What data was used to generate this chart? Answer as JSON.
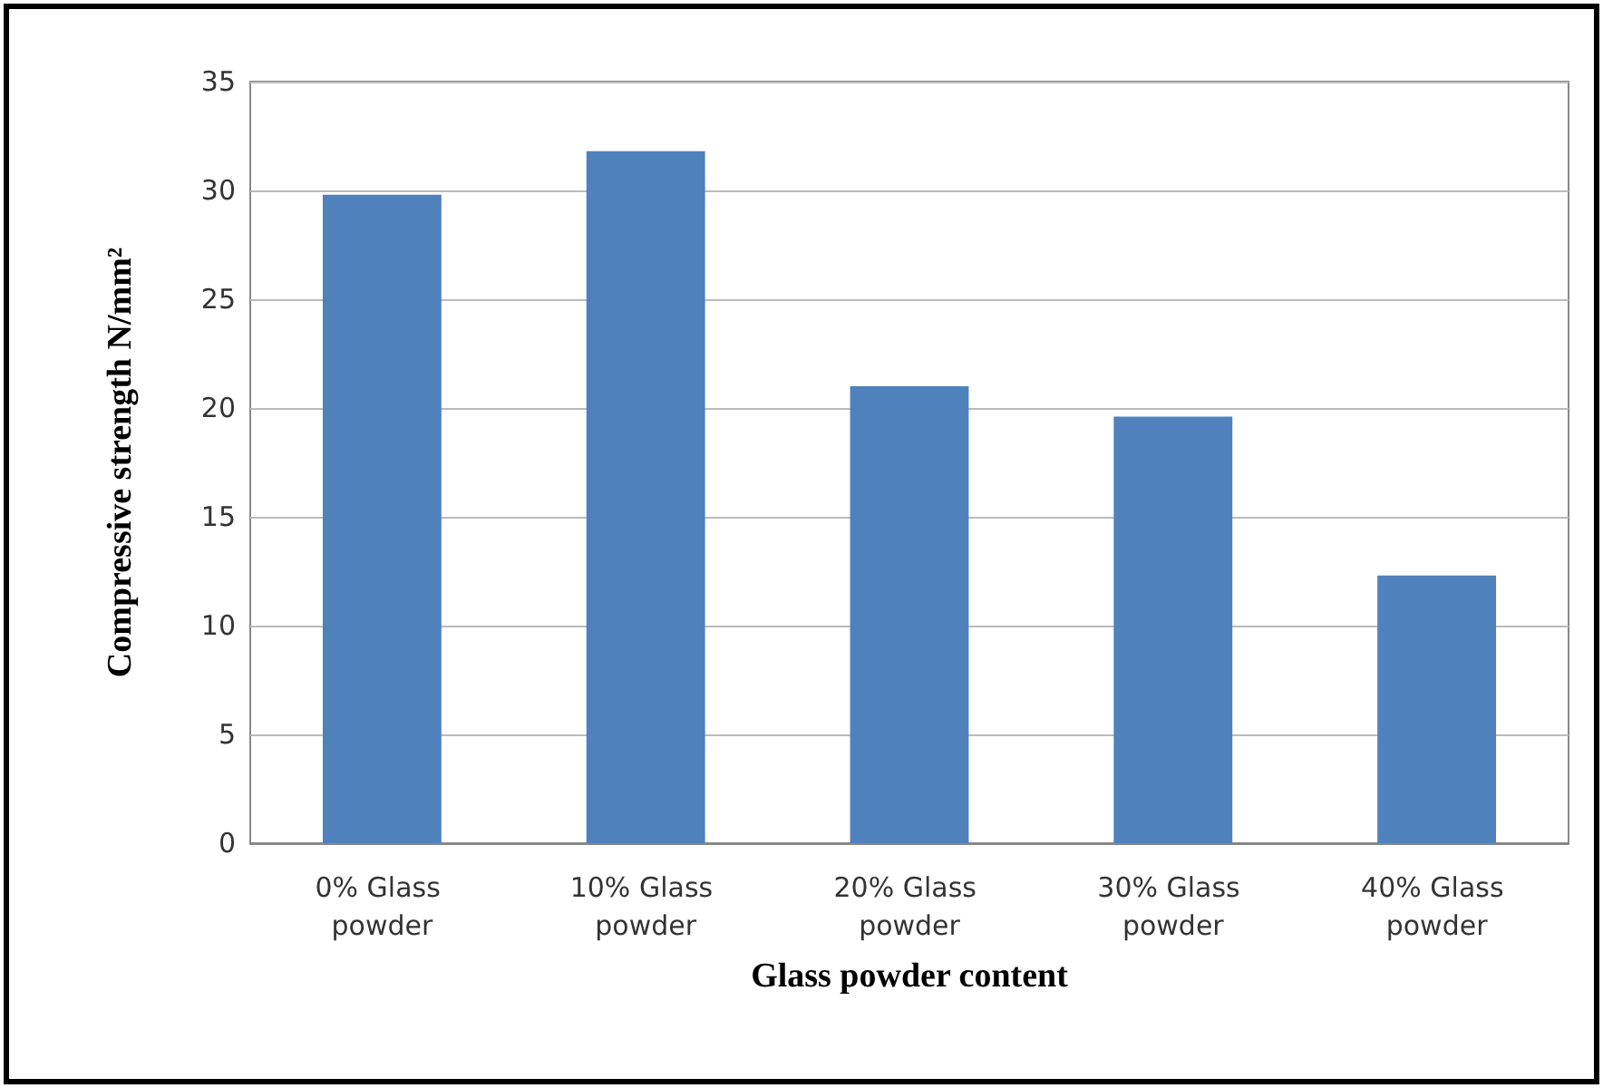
{
  "chart_data": {
    "type": "bar",
    "xlabel": "Glass powder content",
    "ylabel": "Compressive strength N/mm²",
    "categories": [
      "0% Glass powder",
      "10% Glass powder",
      "20% Glass powder",
      "30% Glass powder",
      "40% Glass powder"
    ],
    "values": [
      29.8,
      31.8,
      21.0,
      19.6,
      12.3
    ],
    "color": "#4f81bd",
    "ylim": [
      0,
      35
    ],
    "yticks": [
      0,
      5,
      10,
      15,
      20,
      25,
      30,
      35
    ],
    "grid": "y"
  }
}
